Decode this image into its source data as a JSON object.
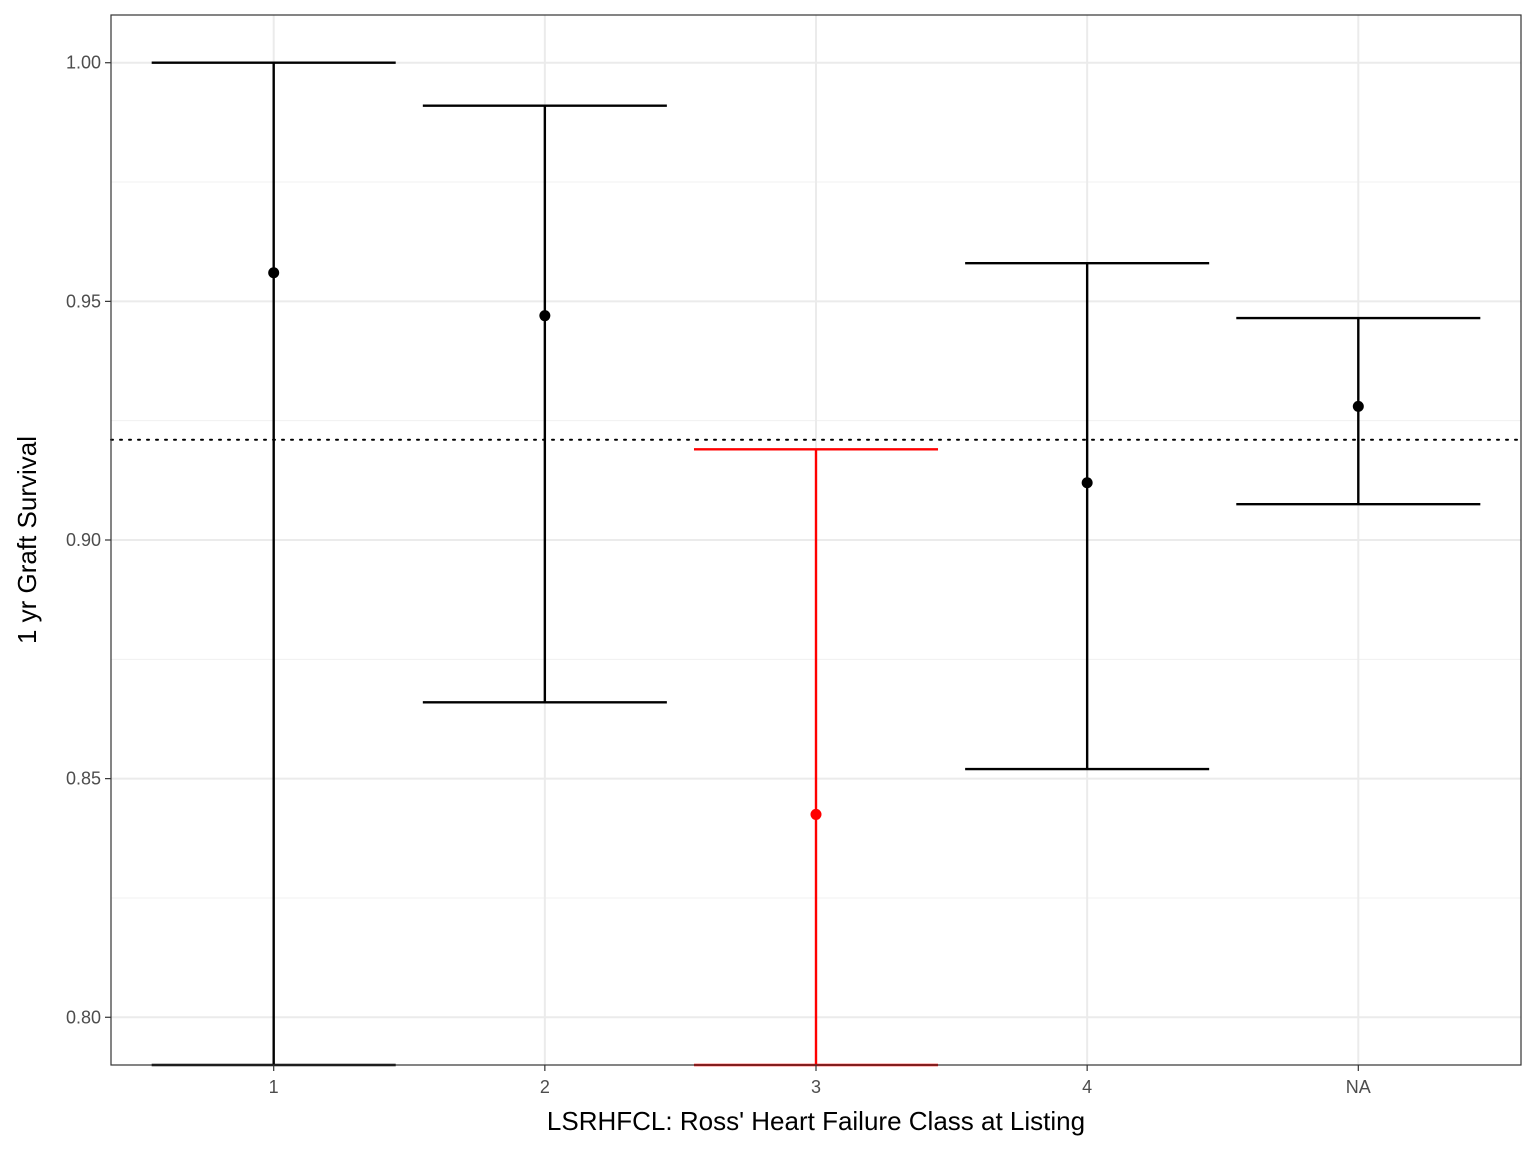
{
  "chart_data": {
    "type": "errorbar",
    "xlabel": "LSRHFCL: Ross' Heart Failure Class at Listing",
    "ylabel": "1 yr Graft Survival",
    "categories": [
      "1",
      "2",
      "3",
      "4",
      "NA"
    ],
    "ylim": [
      0.79,
      1.01
    ],
    "yticks": [
      "0.80",
      "0.85",
      "0.90",
      "0.95",
      "1.00"
    ],
    "grid": true,
    "reference_line": {
      "y": 0.921,
      "style": "dotted",
      "color": "#000000"
    },
    "points": [
      {
        "x": "1",
        "estimate": 0.956,
        "lower": 0.79,
        "upper": 1.0,
        "color": "#000000"
      },
      {
        "x": "2",
        "estimate": 0.947,
        "lower": 0.866,
        "upper": 0.991,
        "color": "#000000"
      },
      {
        "x": "3",
        "estimate": 0.8425,
        "lower": 0.79,
        "upper": 0.919,
        "color": "#ff0000"
      },
      {
        "x": "4",
        "estimate": 0.912,
        "lower": 0.852,
        "upper": 0.958,
        "color": "#000000"
      },
      {
        "x": "NA",
        "estimate": 0.928,
        "lower": 0.9075,
        "upper": 0.9465,
        "color": "#000000"
      }
    ]
  }
}
